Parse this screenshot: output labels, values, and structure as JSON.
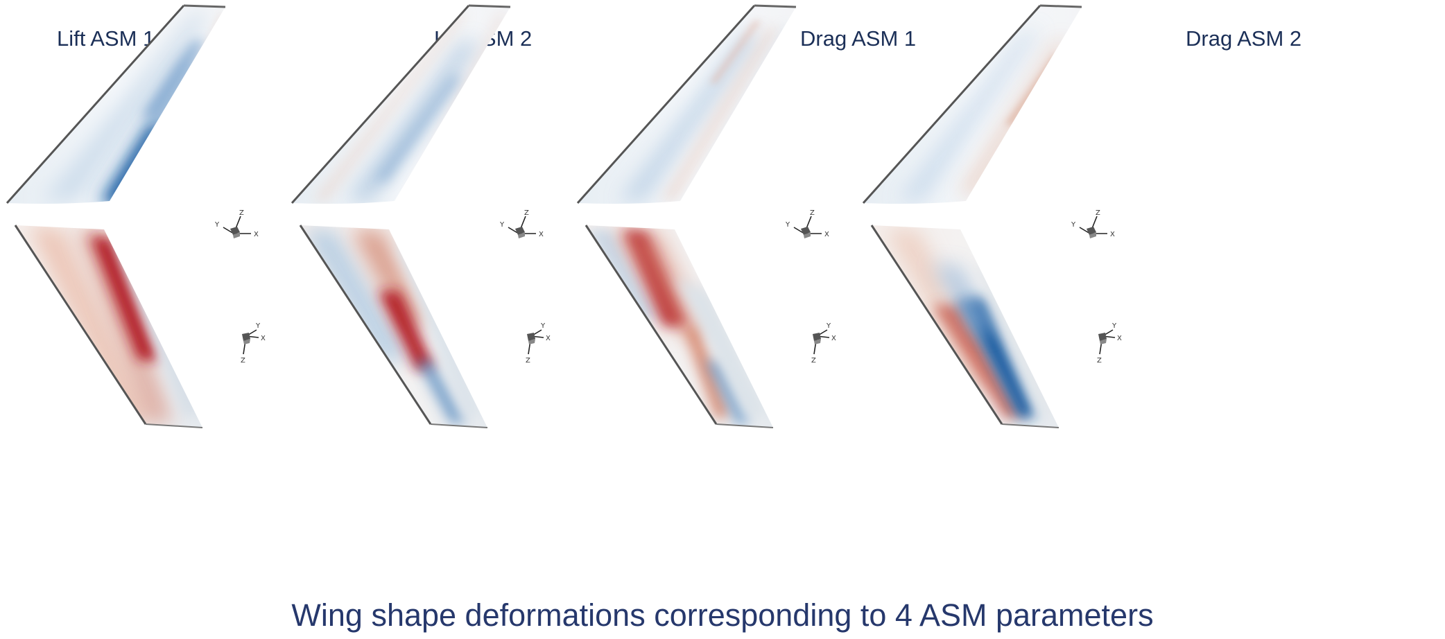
{
  "panels": [
    {
      "title": "Lift ASM 1"
    },
    {
      "title": "Lift ASM 2"
    },
    {
      "title": "Drag ASM 1"
    },
    {
      "title": "Drag ASM 2"
    }
  ],
  "axis_labels": {
    "x": "X",
    "y": "Y",
    "z": "Z"
  },
  "caption": "Wing shape deformations corresponding to 4 ASM parameters",
  "colors": {
    "title_text": "#1b2f57",
    "caption_text": "#26386c",
    "negative_deformation": "#1f5fa3",
    "positive_deformation": "#b31b26",
    "neutral_surface": "#eef3f7"
  }
}
